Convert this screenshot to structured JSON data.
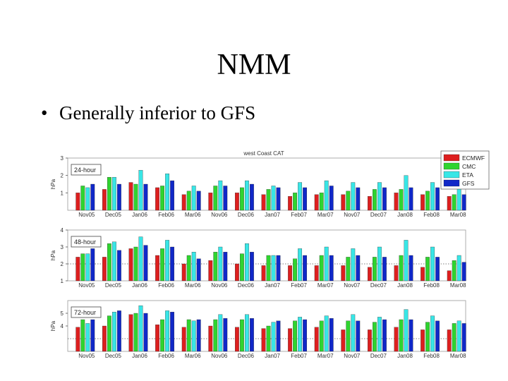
{
  "slide": {
    "title": "NMM",
    "bullets": [
      {
        "marker": "•",
        "text": "Generally inferior to GFS"
      }
    ]
  },
  "chart_data": {
    "type": "bar",
    "title": "west Coast CAT",
    "categories": [
      "Nov05",
      "Dec05",
      "Jan06",
      "Feb06",
      "Mar06",
      "Nov06",
      "Dec06",
      "Jan07",
      "Feb07",
      "Mar07",
      "Nov07",
      "Dec07",
      "Jan08",
      "Feb08",
      "Mar08"
    ],
    "legend": {
      "placement": "top-right",
      "entries": [
        "ECMWF",
        "CMC",
        "ETA",
        "GFS"
      ]
    },
    "colors": {
      "ECMWF": "#dd1f1f",
      "CMC": "#2fd42f",
      "ETA": "#38e6e6",
      "GFS": "#1028c8"
    },
    "panels": [
      {
        "label": "24-hour",
        "ylabel": "hPa",
        "ylim": [
          0,
          3
        ],
        "yticks": [
          1,
          2,
          3
        ],
        "ref_line": null,
        "series": [
          {
            "name": "ECMWF",
            "values": [
              1.0,
              1.2,
              1.6,
              1.3,
              0.9,
              1.0,
              1.0,
              0.9,
              0.8,
              0.9,
              0.9,
              0.8,
              1.0,
              0.9,
              0.8
            ]
          },
          {
            "name": "CMC",
            "values": [
              1.4,
              1.9,
              1.5,
              1.4,
              1.1,
              1.4,
              1.3,
              1.2,
              1.0,
              1.0,
              1.1,
              1.2,
              1.2,
              1.1,
              0.9
            ]
          },
          {
            "name": "ETA",
            "values": [
              1.3,
              1.9,
              2.3,
              2.1,
              1.4,
              1.7,
              1.7,
              1.4,
              1.6,
              1.7,
              1.6,
              1.6,
              2.0,
              1.6,
              1.6
            ]
          },
          {
            "name": "GFS",
            "values": [
              1.5,
              1.5,
              1.5,
              1.7,
              1.1,
              1.4,
              1.5,
              1.3,
              1.3,
              1.4,
              1.3,
              1.3,
              1.3,
              1.3,
              0.9
            ]
          }
        ]
      },
      {
        "label": "48-hour",
        "ylabel": "hPa",
        "ylim": [
          1,
          4
        ],
        "yticks": [
          1,
          2,
          3,
          4
        ],
        "ref_line": 2,
        "series": [
          {
            "name": "ECMWF",
            "values": [
              2.4,
              2.4,
              2.9,
              2.5,
              2.0,
              2.2,
              2.0,
              1.9,
              1.9,
              1.9,
              1.9,
              1.8,
              1.9,
              1.8,
              1.6
            ]
          },
          {
            "name": "CMC",
            "values": [
              2.6,
              3.2,
              3.0,
              2.9,
              2.5,
              2.7,
              2.6,
              2.5,
              2.3,
              2.5,
              2.4,
              2.4,
              2.5,
              2.4,
              2.2
            ]
          },
          {
            "name": "ETA",
            "values": [
              2.6,
              3.3,
              3.6,
              3.4,
              2.7,
              3.0,
              3.2,
              2.5,
              2.9,
              3.0,
              2.9,
              3.0,
              3.4,
              3.0,
              2.5
            ]
          },
          {
            "name": "GFS",
            "values": [
              2.9,
              2.8,
              3.1,
              3.0,
              2.3,
              2.7,
              2.7,
              2.5,
              2.5,
              2.5,
              2.5,
              2.4,
              2.5,
              2.4,
              2.1
            ]
          }
        ]
      },
      {
        "label": "72-hour",
        "ylabel": "hPa",
        "ylim": [
          2,
          6
        ],
        "yticks": [
          4,
          5
        ],
        "ref_line": 3,
        "series": [
          {
            "name": "ECMWF",
            "values": [
              3.9,
              4.0,
              4.9,
              4.1,
              3.9,
              4.0,
              3.9,
              3.8,
              3.8,
              3.9,
              3.7,
              3.7,
              3.9,
              3.7,
              3.7
            ]
          },
          {
            "name": "CMC",
            "values": [
              4.5,
              4.8,
              5.0,
              4.5,
              4.5,
              4.5,
              4.5,
              4.0,
              4.4,
              4.4,
              4.4,
              4.3,
              4.5,
              4.3,
              4.2
            ]
          },
          {
            "name": "ETA",
            "values": [
              4.2,
              5.1,
              5.6,
              5.2,
              4.4,
              4.9,
              4.9,
              4.3,
              4.7,
              4.8,
              4.9,
              4.7,
              5.3,
              4.8,
              4.4
            ]
          },
          {
            "name": "GFS",
            "values": [
              4.5,
              5.2,
              5.0,
              5.1,
              4.5,
              4.6,
              4.6,
              4.4,
              4.5,
              4.6,
              4.4,
              4.5,
              4.5,
              4.4,
              4.2
            ]
          }
        ]
      }
    ]
  }
}
